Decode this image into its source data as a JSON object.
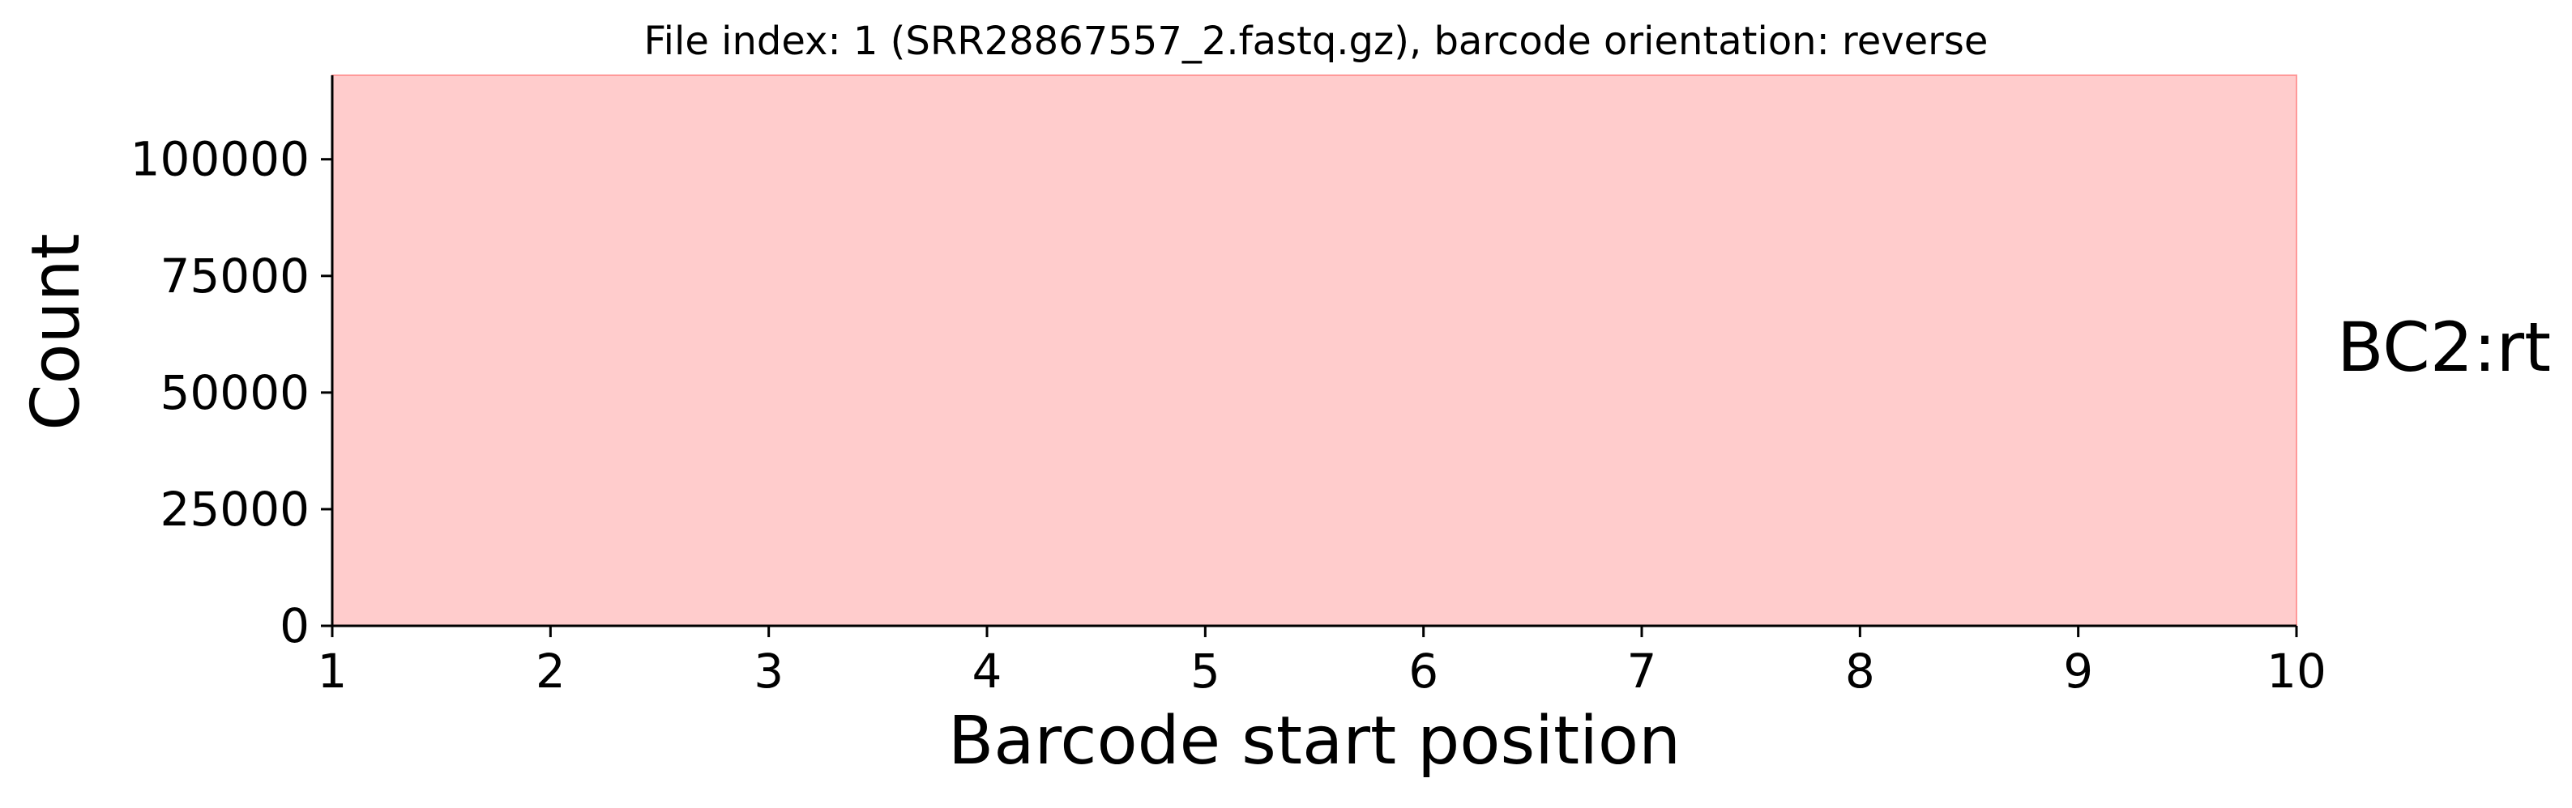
{
  "chart_data": {
    "type": "area",
    "title": "File index: 1 (SRR28867557_2.fastq.gz), barcode orientation: reverse",
    "xlabel": "Barcode start position",
    "ylabel": "Count",
    "panel_label": "BC2:rt",
    "x_ticks": [
      1,
      2,
      3,
      4,
      5,
      6,
      7,
      8,
      9,
      10
    ],
    "y_ticks": [
      0,
      25000,
      50000,
      75000,
      100000
    ],
    "xlim": [
      1,
      10
    ],
    "ylim": [
      0,
      118000
    ],
    "grid": false,
    "series": [
      {
        "x": [
          1,
          2,
          3,
          4,
          5,
          6,
          7,
          8,
          9,
          10
        ],
        "y": [
          118000,
          118000,
          118000,
          118000,
          118000,
          118000,
          118000,
          118000,
          118000,
          118000
        ],
        "color": "#ff9999"
      }
    ]
  }
}
